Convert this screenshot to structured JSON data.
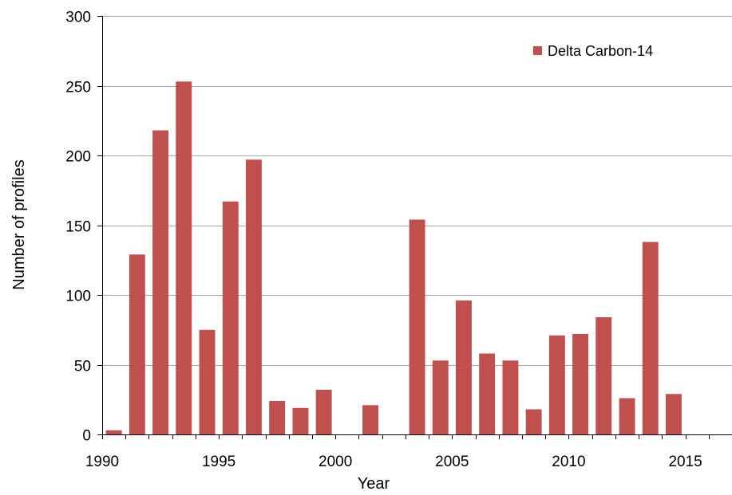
{
  "chart_data": {
    "type": "bar",
    "title": "",
    "xlabel": "Year",
    "ylabel": "Number of profiles",
    "xlim": [
      1990,
      2017
    ],
    "ylim": [
      0,
      300
    ],
    "yticks": [
      "0",
      "50",
      "100",
      "150",
      "200",
      "250",
      "300"
    ],
    "xtick_labels": [
      "1990",
      "1995",
      "2000",
      "2005",
      "2010",
      "2015"
    ],
    "grid": true,
    "legend_position": "top-right",
    "bar_color": "#C0504D",
    "series": [
      {
        "name": "Delta Carbon-14",
        "points": [
          {
            "x": 1990,
            "y": 3
          },
          {
            "x": 1991,
            "y": 129
          },
          {
            "x": 1992,
            "y": 218
          },
          {
            "x": 1993,
            "y": 253
          },
          {
            "x": 1994,
            "y": 75
          },
          {
            "x": 1995,
            "y": 167
          },
          {
            "x": 1996,
            "y": 197
          },
          {
            "x": 1997,
            "y": 24
          },
          {
            "x": 1998,
            "y": 19
          },
          {
            "x": 1999,
            "y": 32
          },
          {
            "x": 2000,
            "y": 0
          },
          {
            "x": 2001,
            "y": 21
          },
          {
            "x": 2002,
            "y": 0
          },
          {
            "x": 2003,
            "y": 154
          },
          {
            "x": 2004,
            "y": 53
          },
          {
            "x": 2005,
            "y": 96
          },
          {
            "x": 2006,
            "y": 58
          },
          {
            "x": 2007,
            "y": 53
          },
          {
            "x": 2008,
            "y": 18
          },
          {
            "x": 2009,
            "y": 71
          },
          {
            "x": 2010,
            "y": 72
          },
          {
            "x": 2011,
            "y": 84
          },
          {
            "x": 2012,
            "y": 26
          },
          {
            "x": 2013,
            "y": 138
          },
          {
            "x": 2014,
            "y": 29
          },
          {
            "x": 2015,
            "y": 0
          },
          {
            "x": 2016,
            "y": 0
          }
        ]
      }
    ]
  }
}
